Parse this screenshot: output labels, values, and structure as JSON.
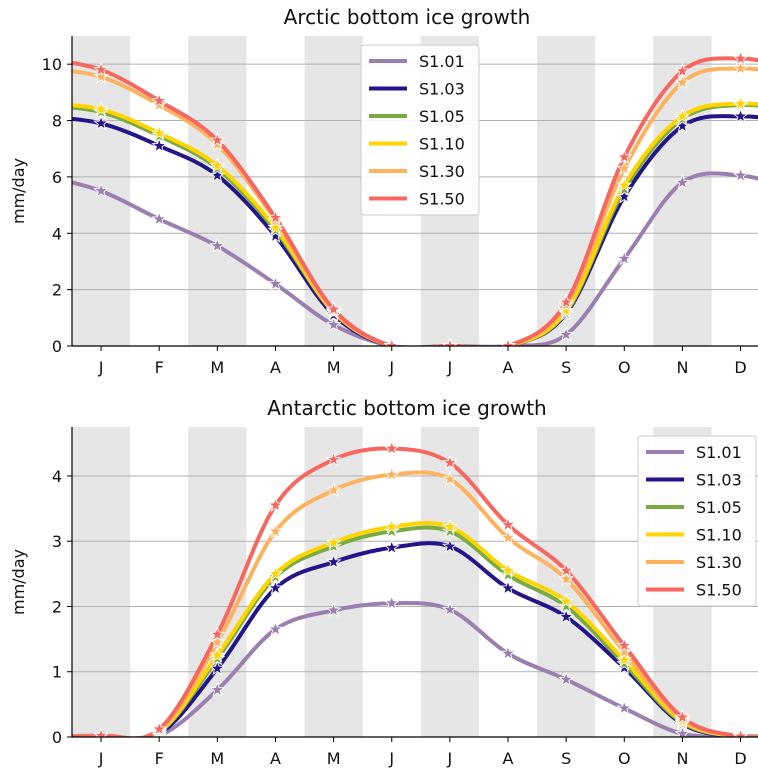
{
  "chart_data": [
    {
      "type": "line",
      "title": "Arctic bottom ice growth",
      "xlabel": "",
      "ylabel": "mm/day",
      "categories": [
        "J",
        "F",
        "M",
        "A",
        "M",
        "J",
        "J",
        "A",
        "S",
        "O",
        "N",
        "D"
      ],
      "x_month_index": [
        0,
        1,
        2,
        3,
        4,
        5,
        6,
        7,
        8,
        9,
        10,
        11
      ],
      "xlim": [
        -0.5,
        11.3
      ],
      "ylim": [
        0,
        11
      ],
      "yticks": [
        0,
        2,
        4,
        6,
        8,
        10
      ],
      "grid": "horizontal",
      "shaded_months": "alternating",
      "legend": "top-center",
      "series": [
        {
          "name": "S1.01",
          "color": "#9b7fb0",
          "values": [
            5.5,
            4.5,
            3.55,
            2.2,
            0.75,
            0.0,
            0.0,
            0.0,
            0.4,
            3.1,
            5.8,
            6.05
          ]
        },
        {
          "name": "S1.03",
          "color": "#24148a",
          "values": [
            7.9,
            7.1,
            6.05,
            3.9,
            1.1,
            0.0,
            0.0,
            0.0,
            1.15,
            5.3,
            7.8,
            8.15
          ]
        },
        {
          "name": "S1.05",
          "color": "#7aaa42",
          "values": [
            8.3,
            7.45,
            6.3,
            4.1,
            1.2,
            0.0,
            0.0,
            0.0,
            1.2,
            5.55,
            8.05,
            8.55
          ]
        },
        {
          "name": "S1.10",
          "color": "#ffd400",
          "values": [
            8.4,
            7.55,
            6.4,
            4.2,
            1.2,
            0.0,
            0.0,
            0.0,
            1.25,
            5.7,
            8.15,
            8.6
          ]
        },
        {
          "name": "S1.30",
          "color": "#fdb35e",
          "values": [
            9.55,
            8.55,
            7.15,
            4.45,
            1.25,
            0.0,
            0.0,
            0.0,
            1.45,
            6.3,
            9.35,
            9.85
          ]
        },
        {
          "name": "S1.50",
          "color": "#f8675f",
          "values": [
            9.8,
            8.7,
            7.3,
            4.55,
            1.3,
            0.0,
            0.0,
            0.0,
            1.55,
            6.7,
            9.75,
            10.2
          ]
        }
      ]
    },
    {
      "type": "line",
      "title": "Antarctic bottom ice growth",
      "xlabel": "",
      "ylabel": "mm/day",
      "categories": [
        "J",
        "F",
        "M",
        "A",
        "M",
        "J",
        "J",
        "A",
        "S",
        "O",
        "N",
        "D"
      ],
      "x_month_index": [
        0,
        1,
        2,
        3,
        4,
        5,
        6,
        7,
        8,
        9,
        10,
        11
      ],
      "xlim": [
        -0.5,
        11.3
      ],
      "ylim": [
        0,
        4.75
      ],
      "yticks": [
        0,
        1,
        2,
        3,
        4
      ],
      "grid": "horizontal",
      "shaded_months": "alternating",
      "legend": "top-right",
      "series": [
        {
          "name": "S1.01",
          "color": "#9b7fb0",
          "values": [
            0.02,
            0.02,
            0.72,
            1.65,
            1.94,
            2.05,
            1.95,
            1.28,
            0.88,
            0.44,
            0.05,
            0.01
          ]
        },
        {
          "name": "S1.03",
          "color": "#24148a",
          "values": [
            0.02,
            0.05,
            1.05,
            2.28,
            2.68,
            2.9,
            2.92,
            2.28,
            1.84,
            1.06,
            0.2,
            0.01
          ]
        },
        {
          "name": "S1.05",
          "color": "#7aaa42",
          "values": [
            0.02,
            0.07,
            1.2,
            2.45,
            2.92,
            3.15,
            3.15,
            2.48,
            2.0,
            1.12,
            0.22,
            0.01
          ]
        },
        {
          "name": "S1.10",
          "color": "#ffd400",
          "values": [
            0.02,
            0.08,
            1.25,
            2.5,
            2.98,
            3.22,
            3.22,
            2.55,
            2.08,
            1.18,
            0.24,
            0.01
          ]
        },
        {
          "name": "S1.30",
          "color": "#fdb35e",
          "values": [
            0.02,
            0.1,
            1.45,
            3.15,
            3.78,
            4.02,
            3.95,
            3.05,
            2.42,
            1.3,
            0.27,
            0.01
          ]
        },
        {
          "name": "S1.50",
          "color": "#f8675f",
          "values": [
            0.02,
            0.12,
            1.57,
            3.55,
            4.25,
            4.42,
            4.2,
            3.25,
            2.55,
            1.4,
            0.3,
            0.01
          ]
        }
      ]
    }
  ]
}
